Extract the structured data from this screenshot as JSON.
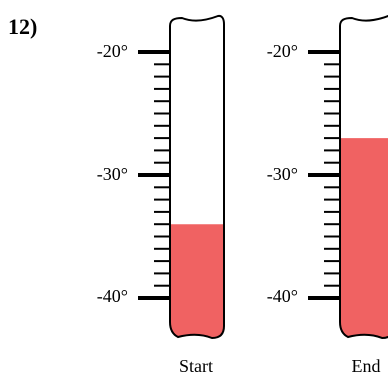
{
  "problem_number": "12)",
  "fill_color": "#f06262",
  "line_color": "#000000",
  "scale": {
    "min": -40,
    "max": -20,
    "minor_step": 1,
    "labels": [
      "-20°",
      "-30°",
      "-40°"
    ]
  },
  "thermometers": [
    {
      "caption": "Start",
      "reading": -34
    },
    {
      "caption": "End",
      "reading": -27
    }
  ]
}
